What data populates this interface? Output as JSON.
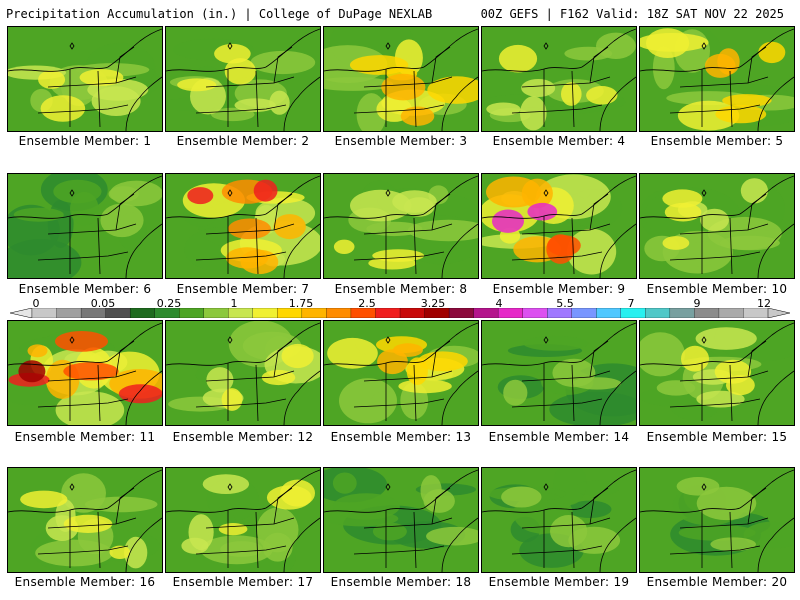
{
  "header": {
    "title_left": "Precipitation Accumulation (in.) | College of DuPage NEXLAB",
    "title_right": "00Z GEFS | F162 Valid: 18Z SAT NOV 22 2025"
  },
  "members": [
    {
      "label": "Ensemble Member: 1",
      "intensity": "moderate"
    },
    {
      "label": "Ensemble Member: 2",
      "intensity": "moderate"
    },
    {
      "label": "Ensemble Member: 3",
      "intensity": "moderate-high"
    },
    {
      "label": "Ensemble Member: 4",
      "intensity": "moderate"
    },
    {
      "label": "Ensemble Member: 5",
      "intensity": "moderate-high"
    },
    {
      "label": "Ensemble Member: 6",
      "intensity": "low"
    },
    {
      "label": "Ensemble Member: 7",
      "intensity": "high"
    },
    {
      "label": "Ensemble Member: 8",
      "intensity": "moderate"
    },
    {
      "label": "Ensemble Member: 9",
      "intensity": "very-high"
    },
    {
      "label": "Ensemble Member: 10",
      "intensity": "moderate"
    },
    {
      "label": "Ensemble Member: 11",
      "intensity": "extreme"
    },
    {
      "label": "Ensemble Member: 12",
      "intensity": "moderate"
    },
    {
      "label": "Ensemble Member: 13",
      "intensity": "moderate-high"
    },
    {
      "label": "Ensemble Member: 14",
      "intensity": "low"
    },
    {
      "label": "Ensemble Member: 15",
      "intensity": "moderate"
    },
    {
      "label": "Ensemble Member: 16",
      "intensity": "moderate"
    },
    {
      "label": "Ensemble Member: 17",
      "intensity": "moderate"
    },
    {
      "label": "Ensemble Member: 18",
      "intensity": "low"
    },
    {
      "label": "Ensemble Member: 19",
      "intensity": "low"
    },
    {
      "label": "Ensemble Member: 20",
      "intensity": "low"
    }
  ],
  "legend": {
    "labels": [
      "0",
      "0.05",
      "0.25",
      "1",
      "1.75",
      "2.5",
      "3.25",
      "4",
      "5.5",
      "7",
      "9",
      "12"
    ],
    "colors": [
      "#c8c8c8",
      "#a0a0a0",
      "#787878",
      "#505050",
      "#1f6b1f",
      "#2e8b2e",
      "#4ea524",
      "#8cc83c",
      "#c8e650",
      "#f0f032",
      "#ffd700",
      "#ffb400",
      "#ff8c00",
      "#ff5000",
      "#f01e1e",
      "#c80a0a",
      "#a00000",
      "#8c0a3c",
      "#b4148c",
      "#e628c8",
      "#dc50f0",
      "#a078ff",
      "#7896ff",
      "#50c8ff",
      "#28f0f0",
      "#50c8c8",
      "#78a0a0",
      "#8c8c8c",
      "#aaaaaa",
      "#c8c8c8"
    ]
  }
}
